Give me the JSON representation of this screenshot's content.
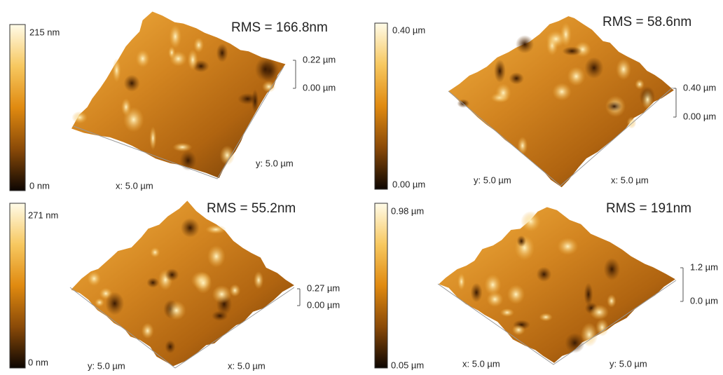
{
  "panels": [
    {
      "rms": "RMS = 166.8nm",
      "colorbar_top": "215 nm",
      "colorbar_bottom": "0 nm",
      "z_top": "0.22 µm",
      "z_bottom": "0.00 µm",
      "x_label": "x: 5.0 µm",
      "y_label": "y: 5.0 µm"
    },
    {
      "rms": "RMS = 58.6nm",
      "colorbar_top": "0.40 µm",
      "colorbar_bottom": "0.00 µm",
      "z_top": "0.40 µm",
      "z_bottom": "0.00 µm",
      "x_label": "x: 5.0 µm",
      "y_label": "y: 5.0 µm"
    },
    {
      "rms": "RMS = 55.2nm",
      "colorbar_top": "271 nm",
      "colorbar_bottom": "0 nm",
      "z_top": "0.27 µm",
      "z_bottom": "0.00 µm",
      "x_label": "x: 5.0 µm",
      "y_label": "y: 5.0 µm"
    },
    {
      "rms": "RMS = 191nm",
      "colorbar_top": "0.98 µm",
      "colorbar_bottom": "0.05 µm",
      "z_top": "1.2 µm",
      "z_bottom": "0.0 µm",
      "x_label": "x: 5.0 µm",
      "y_label": "y: 5.0 µm"
    }
  ]
}
